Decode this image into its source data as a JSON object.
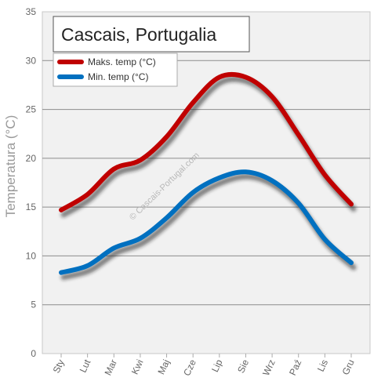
{
  "chart_data": {
    "type": "line",
    "title": "Cascais, Portugalia",
    "ylabel": "Temperatura (°C)",
    "xlabel": "",
    "categories": [
      "Sty",
      "Lut",
      "Mar",
      "Kwi",
      "Maj",
      "Cze",
      "Lip",
      "Sie",
      "Wrz",
      "Paź",
      "Lis",
      "Gru"
    ],
    "ylim": [
      0,
      35
    ],
    "yticks": [
      0,
      5,
      10,
      15,
      20,
      25,
      30,
      35
    ],
    "grid": true,
    "legend_position": "top-left",
    "series": [
      {
        "name": "Maks. temp (°C)",
        "color": "#c00000",
        "values": [
          14.7,
          16.3,
          18.9,
          19.8,
          22.2,
          25.7,
          28.3,
          28.3,
          26.3,
          22.4,
          18.3,
          15.3
        ]
      },
      {
        "name": "Min. temp (°C)",
        "color": "#0070c0",
        "values": [
          8.3,
          9.0,
          10.8,
          11.8,
          13.9,
          16.5,
          18.0,
          18.6,
          17.7,
          15.4,
          11.7,
          9.3
        ]
      }
    ],
    "watermark": "© Cascais-Portugal.com"
  }
}
